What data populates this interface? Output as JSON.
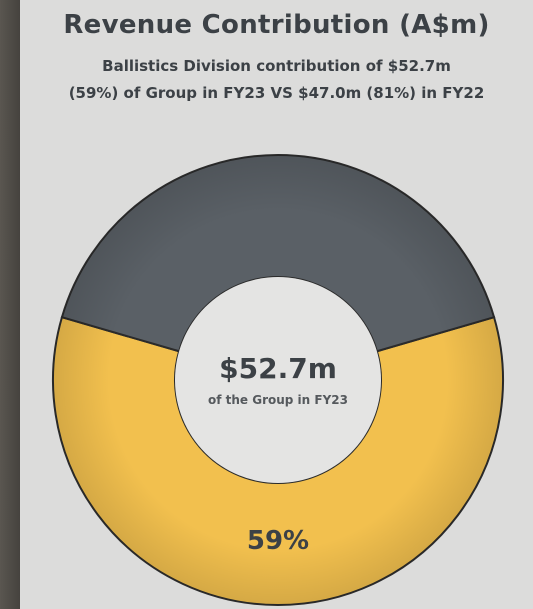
{
  "chart_data": {
    "type": "pie",
    "title": "Revenue Contribution (A$m)",
    "subtitle_line1": "Ballistics Division contribution of $52.7m",
    "subtitle_line2": "(59%) of Group in FY23 VS $47.0m (81%) in FY22",
    "center_value": "$52.7m",
    "center_caption": "of the Group in FY23",
    "slices": [
      {
        "label": "59%",
        "value": 59,
        "color": "#f2c04e"
      },
      {
        "label": "",
        "value": 41,
        "color": "#5a6066"
      }
    ]
  }
}
